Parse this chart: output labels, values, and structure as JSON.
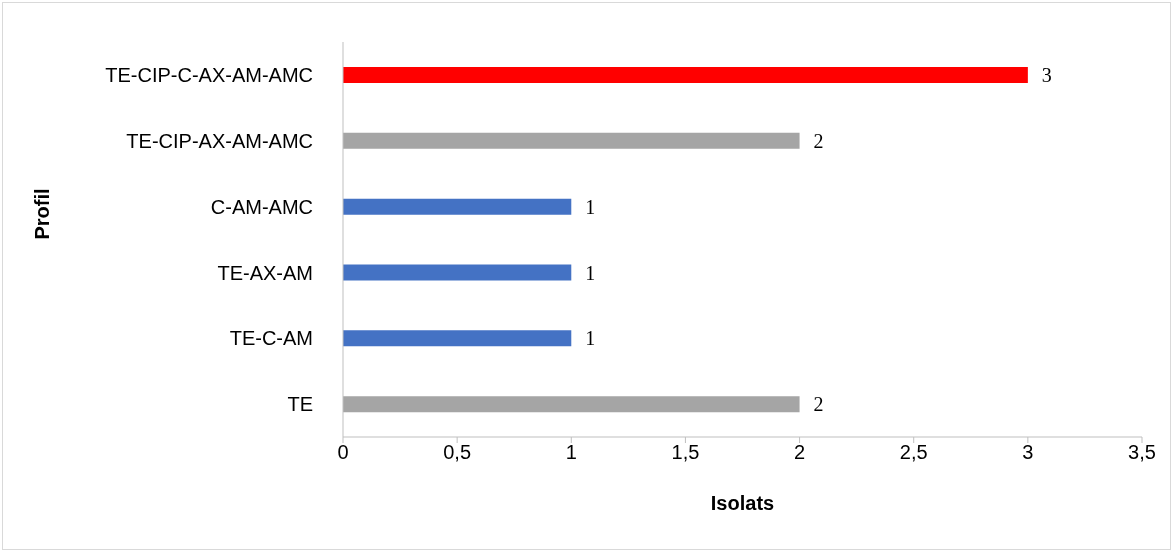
{
  "chart_data": {
    "type": "bar",
    "orientation": "horizontal",
    "categories": [
      "TE-CIP-C-AX-AM-AMC",
      "TE-CIP-AX-AM-AMC",
      "C-AM-AMC",
      "TE-AX-AM",
      "TE-C-AM",
      "TE"
    ],
    "values": [
      3,
      2,
      1,
      1,
      1,
      2
    ],
    "colors": [
      "#ff0000",
      "#a5a5a5",
      "#4472c4",
      "#4472c4",
      "#4472c4",
      "#a5a5a5"
    ],
    "xlim": [
      0,
      3.5
    ],
    "xticks": [
      0,
      {
        "value": 0.5,
        "label": "0,5"
      },
      1,
      {
        "value": 1.5,
        "label": "1,5"
      },
      2,
      {
        "value": 2.5,
        "label": "2,5"
      },
      3,
      {
        "value": 3.5,
        "label": "3,5"
      }
    ],
    "xlabel": "Isolats",
    "ylabel": "Profil",
    "data_labels": true,
    "grid": false
  }
}
